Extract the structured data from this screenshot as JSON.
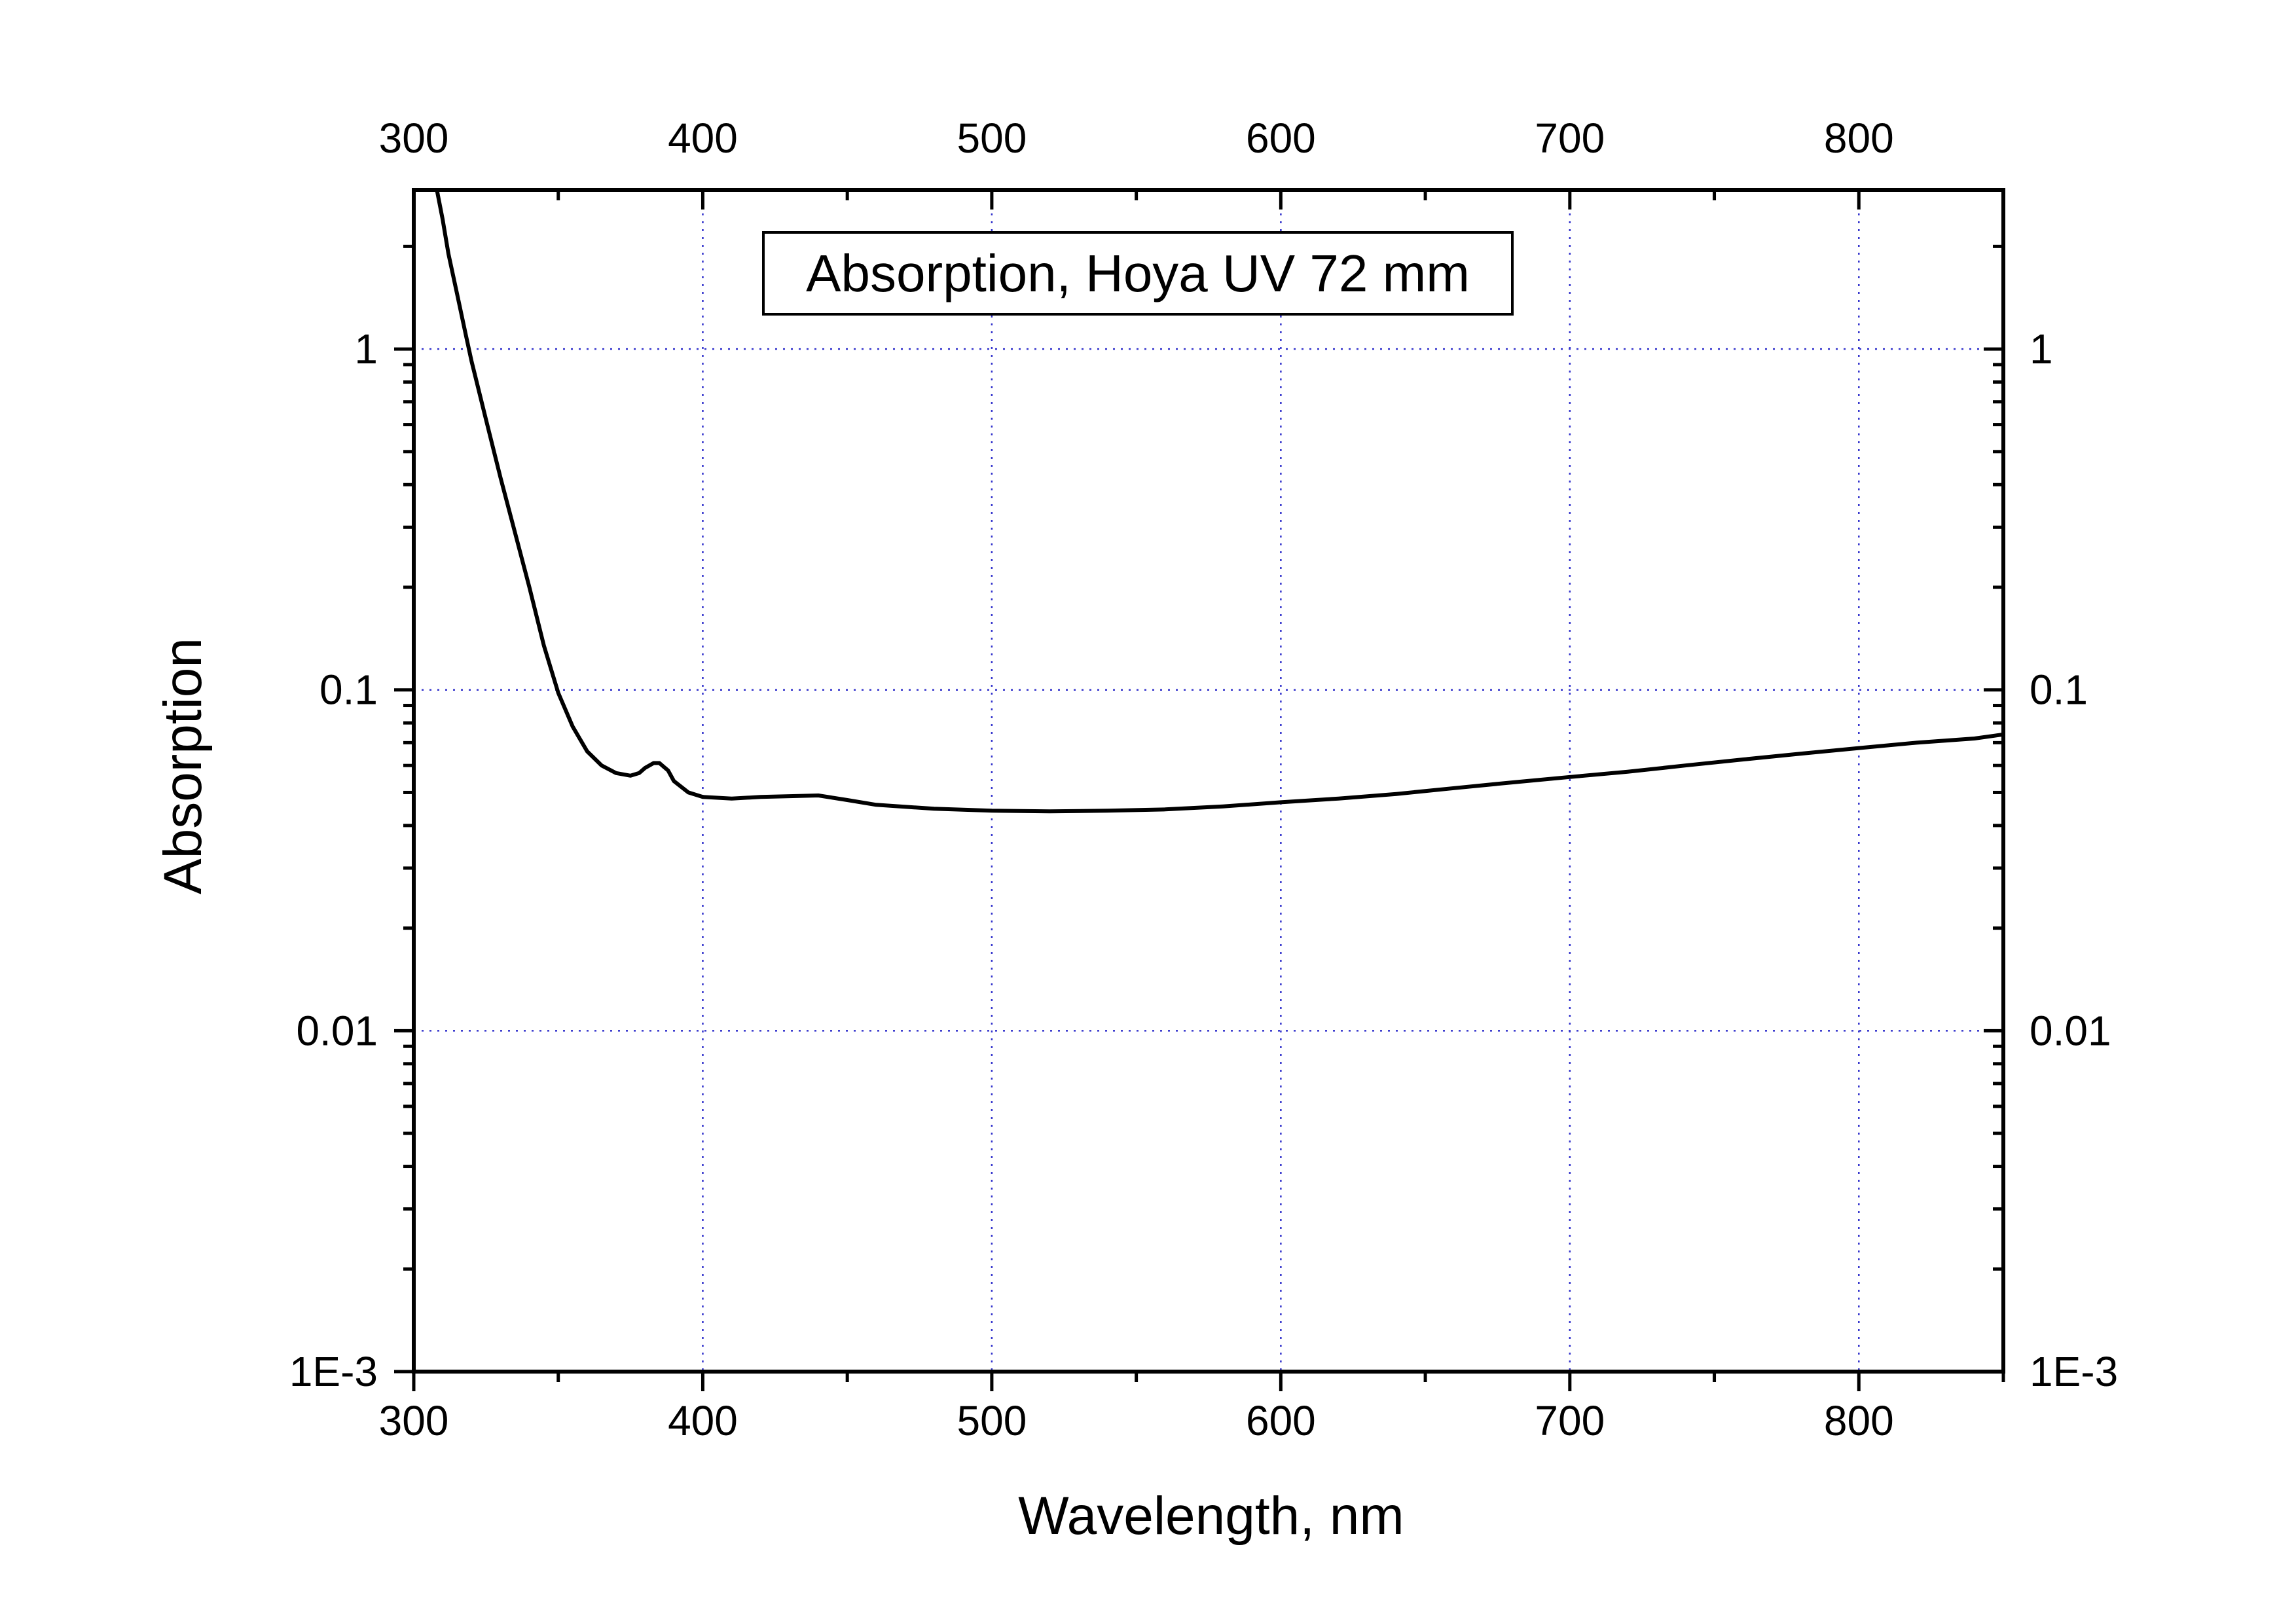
{
  "chart_data": {
    "type": "line",
    "title": "",
    "xlabel": "Wavelength, nm",
    "ylabel": "Absorption",
    "xlim": [
      300,
      850
    ],
    "ylim": [
      0.001,
      2.93
    ],
    "yscale": "log",
    "grid": true,
    "legend_position": "top-center",
    "x_ticks": [
      300,
      400,
      500,
      600,
      700,
      800
    ],
    "x_tick_labels": [
      "300",
      "400",
      "500",
      "600",
      "700",
      "800"
    ],
    "y_ticks": [
      0.001,
      0.01,
      0.1,
      1
    ],
    "y_tick_labels": [
      "1E-3",
      "0.01",
      "0.1",
      "1"
    ],
    "colors": {
      "line": "#000000",
      "grid": "#3333cc",
      "axes": "#000000"
    },
    "series": [
      {
        "name": "Absorption, Hoya UV 72 mm",
        "x": [
          308,
          310,
          312,
          315,
          318,
          320,
          325,
          330,
          335,
          340,
          345,
          350,
          355,
          360,
          365,
          370,
          375,
          378,
          380,
          383,
          385,
          388,
          390,
          395,
          400,
          410,
          420,
          440,
          450,
          460,
          480,
          500,
          520,
          540,
          560,
          580,
          600,
          620,
          640,
          660,
          680,
          700,
          720,
          740,
          760,
          780,
          800,
          820,
          840,
          850
        ],
        "y": [
          2.93,
          2.4,
          1.9,
          1.45,
          1.1,
          0.92,
          0.62,
          0.42,
          0.29,
          0.2,
          0.135,
          0.098,
          0.078,
          0.066,
          0.06,
          0.057,
          0.056,
          0.057,
          0.059,
          0.061,
          0.061,
          0.058,
          0.054,
          0.05,
          0.0485,
          0.048,
          0.0485,
          0.049,
          0.0475,
          0.046,
          0.0448,
          0.0442,
          0.044,
          0.0442,
          0.0446,
          0.0455,
          0.0468,
          0.048,
          0.0495,
          0.0515,
          0.0535,
          0.0555,
          0.0575,
          0.06,
          0.0625,
          0.065,
          0.0675,
          0.07,
          0.072,
          0.074
        ]
      }
    ]
  }
}
